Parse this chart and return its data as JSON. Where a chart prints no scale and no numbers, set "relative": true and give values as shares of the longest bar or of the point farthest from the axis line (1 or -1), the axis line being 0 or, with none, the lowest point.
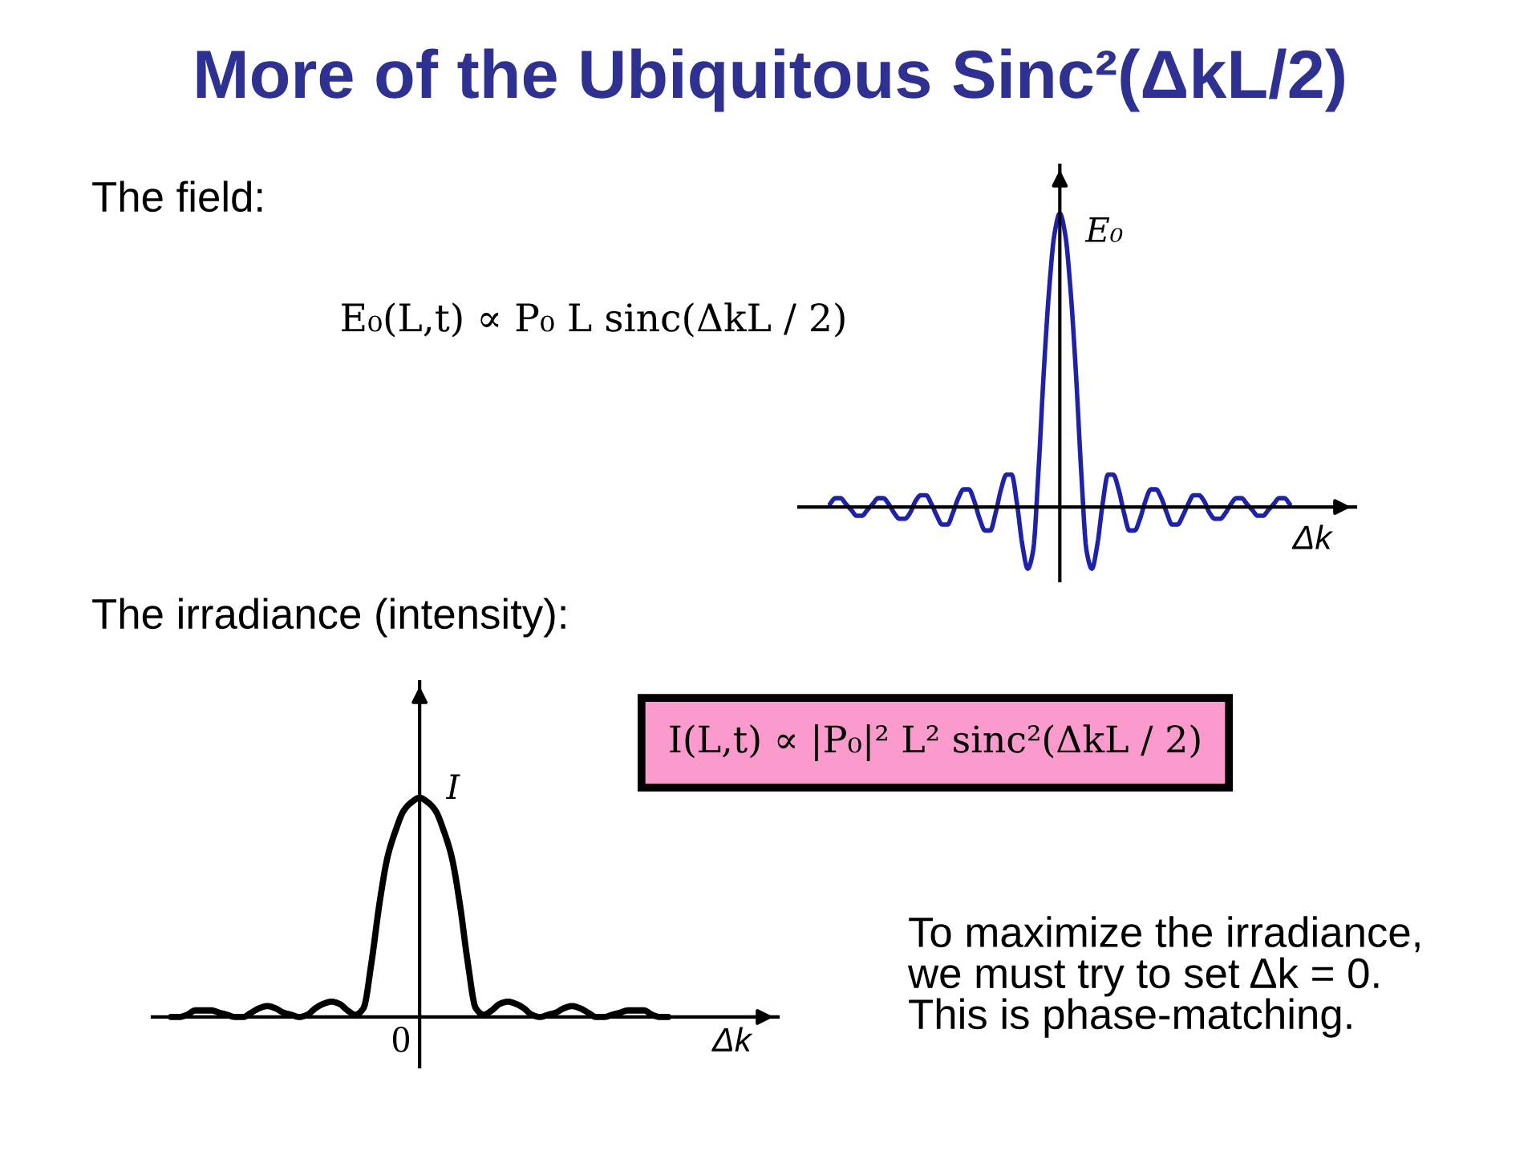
{
  "chart_data": [
    {
      "type": "line",
      "title": "More of the Ubiquitous Sinc²(ΔkL/2)",
      "xlabel": "Δk",
      "ylabel": "E₀",
      "relative": true,
      "annotations": [
        "The field:",
        "E₀(L,t) ∝ P₀ L sinc(ΔkL / 2)"
      ],
      "categories": [
        null,
        null,
        null,
        null,
        null,
        null,
        null,
        null,
        null,
        null,
        null,
        null,
        null,
        null,
        null,
        null,
        null,
        null,
        null,
        null,
        null,
        null,
        null,
        null,
        null,
        null,
        null,
        null,
        null,
        null,
        null,
        null,
        null,
        null,
        null,
        null,
        null,
        null,
        null,
        null,
        null,
        null,
        null,
        null,
        null,
        null,
        null,
        null,
        null,
        null,
        null,
        null,
        null,
        null,
        null,
        null,
        null,
        null,
        null,
        null,
        null,
        null,
        null,
        null,
        null,
        null,
        null,
        null,
        null,
        null,
        null,
        null,
        null,
        null,
        null,
        null,
        null,
        null,
        null,
        null,
        null,
        null,
        null,
        null,
        null,
        null,
        null
      ],
      "series": [
        {
          "color": "#1e22aa",
          "values": [
            0.01,
            0.03,
            0.03,
            0.01,
            -0.01,
            -0.03,
            -0.03,
            -0.01,
            0.01,
            0.03,
            0.03,
            0.01,
            -0.02,
            -0.04,
            -0.04,
            -0.02,
            0.02,
            0.04,
            0.04,
            0.01,
            -0.03,
            -0.06,
            -0.06,
            -0.02,
            0.03,
            0.06,
            0.06,
            0.02,
            -0.04,
            -0.08,
            -0.08,
            -0.02,
            0.06,
            0.11,
            0.11,
            0.01,
            -0.13,
            -0.21,
            -0.15,
            0.12,
            0.46,
            0.74,
            0.93,
            1.0,
            0.93,
            0.74,
            0.46,
            0.12,
            -0.15,
            -0.21,
            -0.13,
            0.01,
            0.11,
            0.11,
            0.06,
            -0.02,
            -0.08,
            -0.08,
            -0.04,
            0.02,
            0.06,
            0.06,
            0.03,
            -0.02,
            -0.06,
            -0.06,
            -0.03,
            0.01,
            0.04,
            0.04,
            0.02,
            -0.02,
            -0.04,
            -0.04,
            -0.02,
            0.01,
            0.03,
            0.03,
            0.01,
            -0.01,
            -0.03,
            -0.03,
            -0.01,
            0.01,
            0.03,
            0.03,
            0.01
          ]
        }
      ]
    },
    {
      "type": "line",
      "xlabel": "Δk",
      "ylabel": "I",
      "relative": true,
      "annotations": [
        "The irradiance (intensity):",
        "I(L,t) ∝ |P₀|² L² sinc²(ΔkL / 2)",
        "To maximize the irradiance,\nwe must try to set Δk = 0.\nThis is phase-matching.",
        "0"
      ],
      "categories": [
        null,
        null,
        null,
        null,
        null,
        null,
        null,
        null,
        null,
        null,
        null,
        null,
        null,
        null,
        null,
        null,
        null,
        null,
        null,
        null,
        null,
        null,
        null,
        null,
        null,
        null,
        null,
        null,
        null,
        null,
        null,
        null,
        null,
        null,
        null,
        null,
        null,
        null,
        null,
        null,
        null,
        null,
        null,
        null,
        null,
        null,
        null,
        null,
        null,
        null,
        null,
        null,
        null,
        null,
        null,
        null,
        null,
        null,
        null,
        null,
        null,
        null,
        null
      ],
      "series": [
        {
          "color": "#000000",
          "values": [
            0.0,
            0.0,
            0.01,
            0.03,
            0.03,
            0.03,
            0.02,
            0.01,
            0.0,
            0.0,
            0.02,
            0.04,
            0.05,
            0.04,
            0.02,
            0.01,
            0.0,
            0.01,
            0.04,
            0.06,
            0.07,
            0.06,
            0.03,
            0.01,
            0.04,
            0.25,
            0.52,
            0.73,
            0.85,
            0.94,
            0.98,
            1.0,
            0.98,
            0.94,
            0.85,
            0.73,
            0.52,
            0.25,
            0.04,
            0.01,
            0.03,
            0.06,
            0.07,
            0.06,
            0.04,
            0.01,
            0.0,
            0.01,
            0.02,
            0.04,
            0.05,
            0.04,
            0.02,
            0.0,
            0.0,
            0.01,
            0.02,
            0.03,
            0.03,
            0.03,
            0.01,
            0.0,
            0.0
          ]
        }
      ]
    }
  ]
}
